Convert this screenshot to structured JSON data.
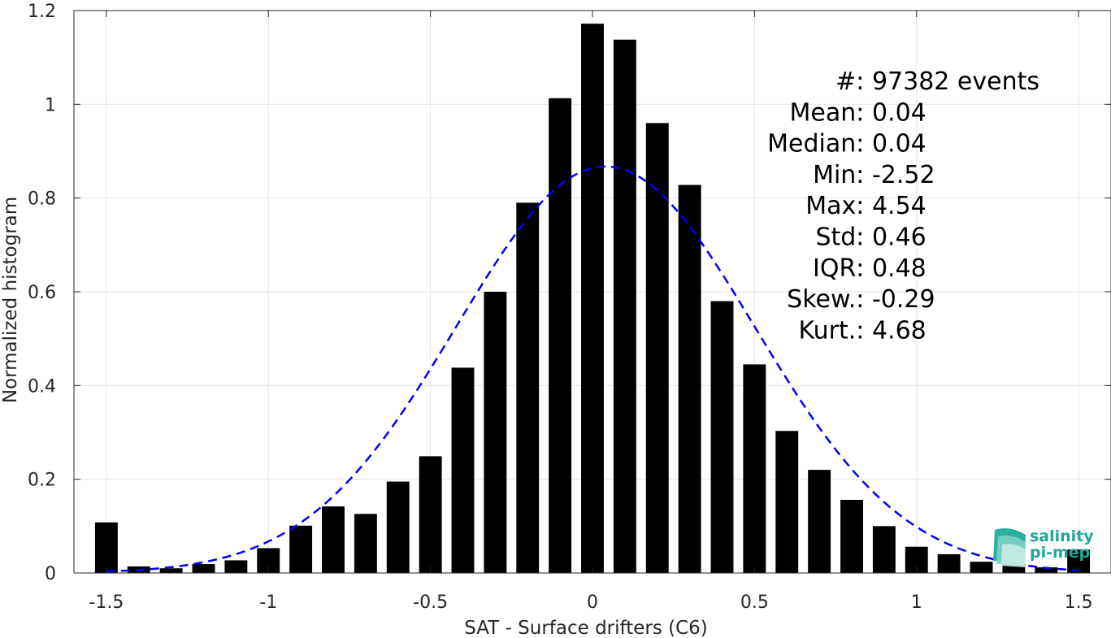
{
  "chart_data": {
    "type": "bar",
    "xlabel": "SAT - Surface drifters (C6)",
    "ylabel": "Normalized histogram",
    "xlim": [
      -1.6,
      1.6
    ],
    "ylim": [
      0,
      1.2
    ],
    "xticks": [
      -1.5,
      -1,
      -0.5,
      0,
      0.5,
      1,
      1.5
    ],
    "xtick_labels": [
      "-1.5",
      "-1",
      "-0.5",
      "0",
      "0.5",
      "1",
      "1.5"
    ],
    "yticks": [
      0,
      0.2,
      0.4,
      0.6,
      0.8,
      1,
      1.2
    ],
    "ytick_labels": [
      "0",
      "0.2",
      "0.4",
      "0.6",
      "0.8",
      "1",
      "1.2"
    ],
    "grid": true,
    "bar_width": 0.07,
    "bars": {
      "x": [
        -1.5,
        -1.4,
        -1.3,
        -1.2,
        -1.1,
        -1.0,
        -0.9,
        -0.8,
        -0.7,
        -0.6,
        -0.5,
        -0.4,
        -0.3,
        -0.2,
        -0.1,
        0.0,
        0.1,
        0.2,
        0.3,
        0.4,
        0.5,
        0.6,
        0.7,
        0.8,
        0.9,
        1.0,
        1.1,
        1.2,
        1.3,
        1.4,
        1.5
      ],
      "values": [
        0.108,
        0.014,
        0.01,
        0.019,
        0.027,
        0.053,
        0.101,
        0.142,
        0.126,
        0.195,
        0.249,
        0.438,
        0.6,
        0.79,
        1.013,
        1.172,
        1.138,
        0.96,
        0.828,
        0.58,
        0.445,
        0.303,
        0.22,
        0.156,
        0.1,
        0.056,
        0.04,
        0.024,
        0.02,
        0.012,
        0.05
      ],
      "color": "#000000"
    },
    "fit_curve": {
      "style": "dashed",
      "color": "#0000ff",
      "mean": 0.04,
      "std": 0.46,
      "x_range": [
        -1.5,
        1.5
      ]
    },
    "stats": [
      {
        "key": "#  ",
        "value": ": 97382 events"
      },
      {
        "key": "Mean ",
        "value": ": 0.04"
      },
      {
        "key": "Median ",
        "value": ": 0.04"
      },
      {
        "key": "Min ",
        "value": ": -2.52"
      },
      {
        "key": "Max ",
        "value": ": 4.54"
      },
      {
        "key": "Std ",
        "value": ": 0.46"
      },
      {
        "key": "IQR ",
        "value": ": 0.48"
      },
      {
        "key": "Skew. ",
        "value": ": -0.29"
      },
      {
        "key": "Kurt. ",
        "value": ": 4.68"
      }
    ]
  },
  "logo": {
    "line1": "salinity",
    "line2": "pi-mep",
    "color": "#1fa89a"
  }
}
